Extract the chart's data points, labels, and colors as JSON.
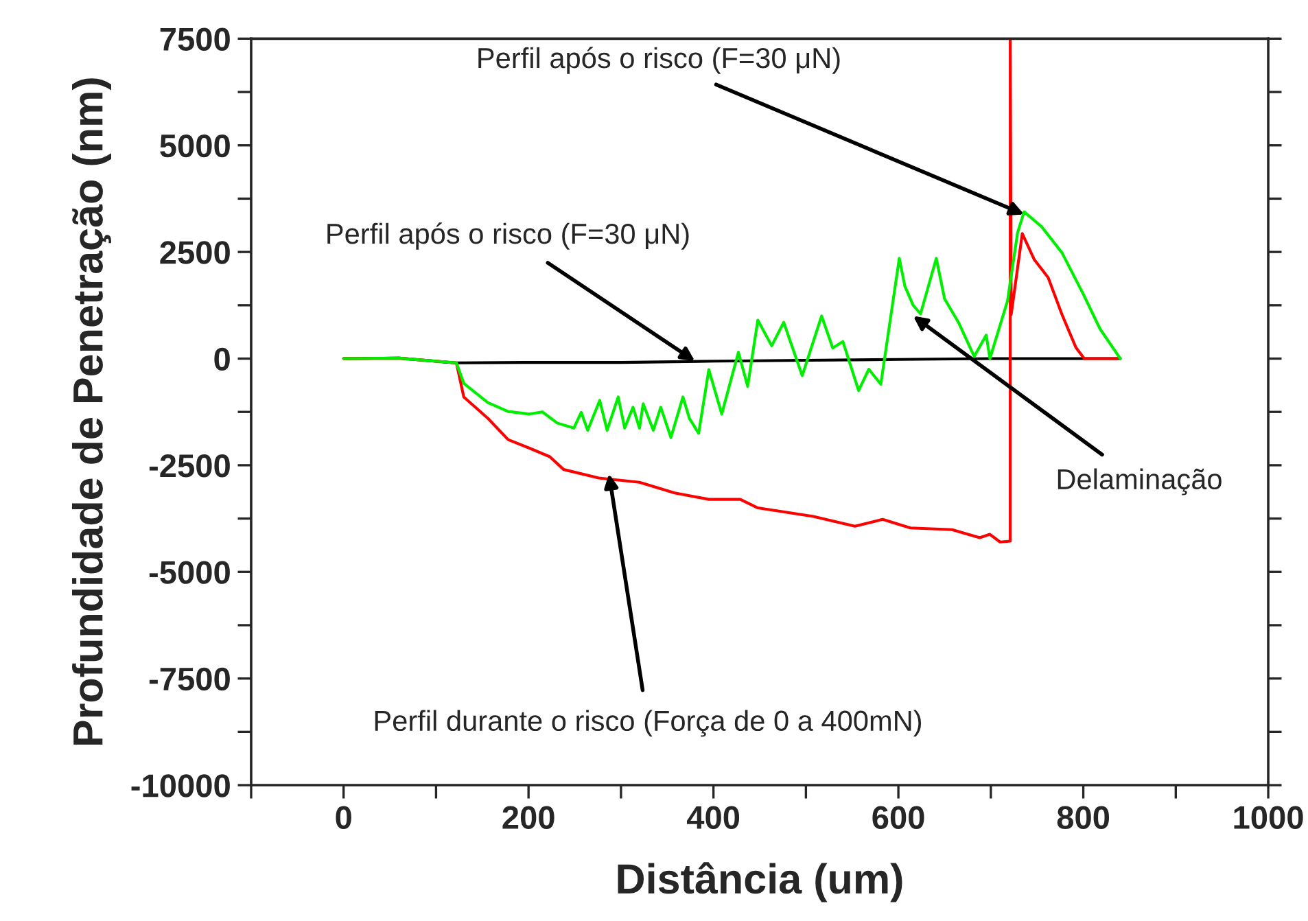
{
  "chart_data": {
    "type": "line",
    "xlabel": "Distância (um)",
    "ylabel": "Profundidade de Penetração (nm)",
    "xlim": [
      -100,
      1000
    ],
    "xticks": [
      {
        "value": -100,
        "label": null
      },
      0,
      {
        "value": 100,
        "label": null
      },
      200,
      {
        "value": 300,
        "label": null
      },
      400,
      {
        "value": 500,
        "label": null
      },
      600,
      {
        "value": 700,
        "label": null
      },
      800,
      {
        "value": 900,
        "label": null
      },
      1000
    ],
    "ylim": [
      -10000,
      7500
    ],
    "yticks": [
      -10000,
      {
        "value": -8750,
        "label": null
      },
      -7500,
      {
        "value": -6250,
        "label": null
      },
      -5000,
      {
        "value": -3750,
        "label": null
      },
      -2500,
      {
        "value": -1250,
        "label": null
      },
      0,
      {
        "value": 1250,
        "label": null
      },
      2500,
      {
        "value": 3750,
        "label": null
      },
      5000,
      {
        "value": 6250,
        "label": null
      },
      7500
    ],
    "grid": false,
    "legend": false,
    "marker": "none",
    "line_style": "solid",
    "series": [
      {
        "color": "#000000",
        "x": [
          0,
          60,
          120,
          200,
          300,
          400,
          500,
          600,
          700,
          760,
          840
        ],
        "values": [
          0,
          10,
          -100,
          -90,
          -90,
          -60,
          -40,
          -20,
          0,
          0,
          0
        ]
      },
      {
        "color": "#ff0000",
        "x": [
          0,
          60,
          122,
          130,
          156,
          178,
          201,
          223,
          238,
          276,
          320,
          358,
          395,
          429,
          448,
          508,
          553,
          583,
          613,
          658,
          688,
          699,
          710,
          721,
          721,
          722,
          734,
          747,
          762,
          777,
          792,
          801,
          837
        ],
        "values": [
          0,
          10,
          -100,
          -900,
          -1400,
          -1900,
          -2100,
          -2300,
          -2600,
          -2800,
          -2900,
          -3150,
          -3300,
          -3300,
          -3500,
          -3700,
          -3930,
          -3770,
          -3970,
          -4010,
          -4200,
          -4120,
          -4300,
          -4280,
          7500,
          1030,
          2930,
          2320,
          1900,
          1030,
          260,
          0,
          0
        ]
      },
      {
        "color": "#00ee00",
        "x": [
          0,
          60,
          122,
          130,
          156,
          178,
          201,
          215,
          231,
          249,
          257,
          264,
          277,
          285,
          297,
          304,
          313,
          320,
          324,
          335,
          343,
          354,
          367,
          374,
          384,
          395,
          409,
          427,
          437,
          448,
          463,
          476,
          484,
          496,
          517,
          529,
          540,
          557,
          568,
          581,
          601,
          607,
          616,
          624,
          641,
          650,
          665,
          682,
          695,
          699,
          718,
          729,
          736,
          755,
          777,
          800,
          818,
          840
        ],
        "values": [
          0,
          10,
          -100,
          -580,
          -1030,
          -1240,
          -1300,
          -1250,
          -1510,
          -1630,
          -1260,
          -1680,
          -980,
          -1680,
          -900,
          -1630,
          -1140,
          -1630,
          -1060,
          -1680,
          -1140,
          -1850,
          -900,
          -1400,
          -1750,
          -260,
          -1300,
          150,
          -650,
          900,
          300,
          850,
          350,
          -400,
          1000,
          250,
          400,
          -750,
          -250,
          -600,
          2350,
          1700,
          1250,
          1050,
          2350,
          1400,
          850,
          50,
          550,
          0,
          1350,
          2960,
          3440,
          3090,
          2480,
          1510,
          700,
          0
        ]
      }
    ],
    "annotations": [
      {
        "text": "Perfil após o risco (F=30 μN)",
        "x": 736,
        "y": 3380
      },
      {
        "text": "Perfil após o risco (F=30 μN)",
        "x": 380,
        "y": -60
      },
      {
        "text": "Delaminação",
        "x": 616,
        "y": 1000
      },
      {
        "text": "Perfil durante o risco (Força de 0 a 400mN)",
        "x": 287,
        "y": -2700
      }
    ]
  }
}
